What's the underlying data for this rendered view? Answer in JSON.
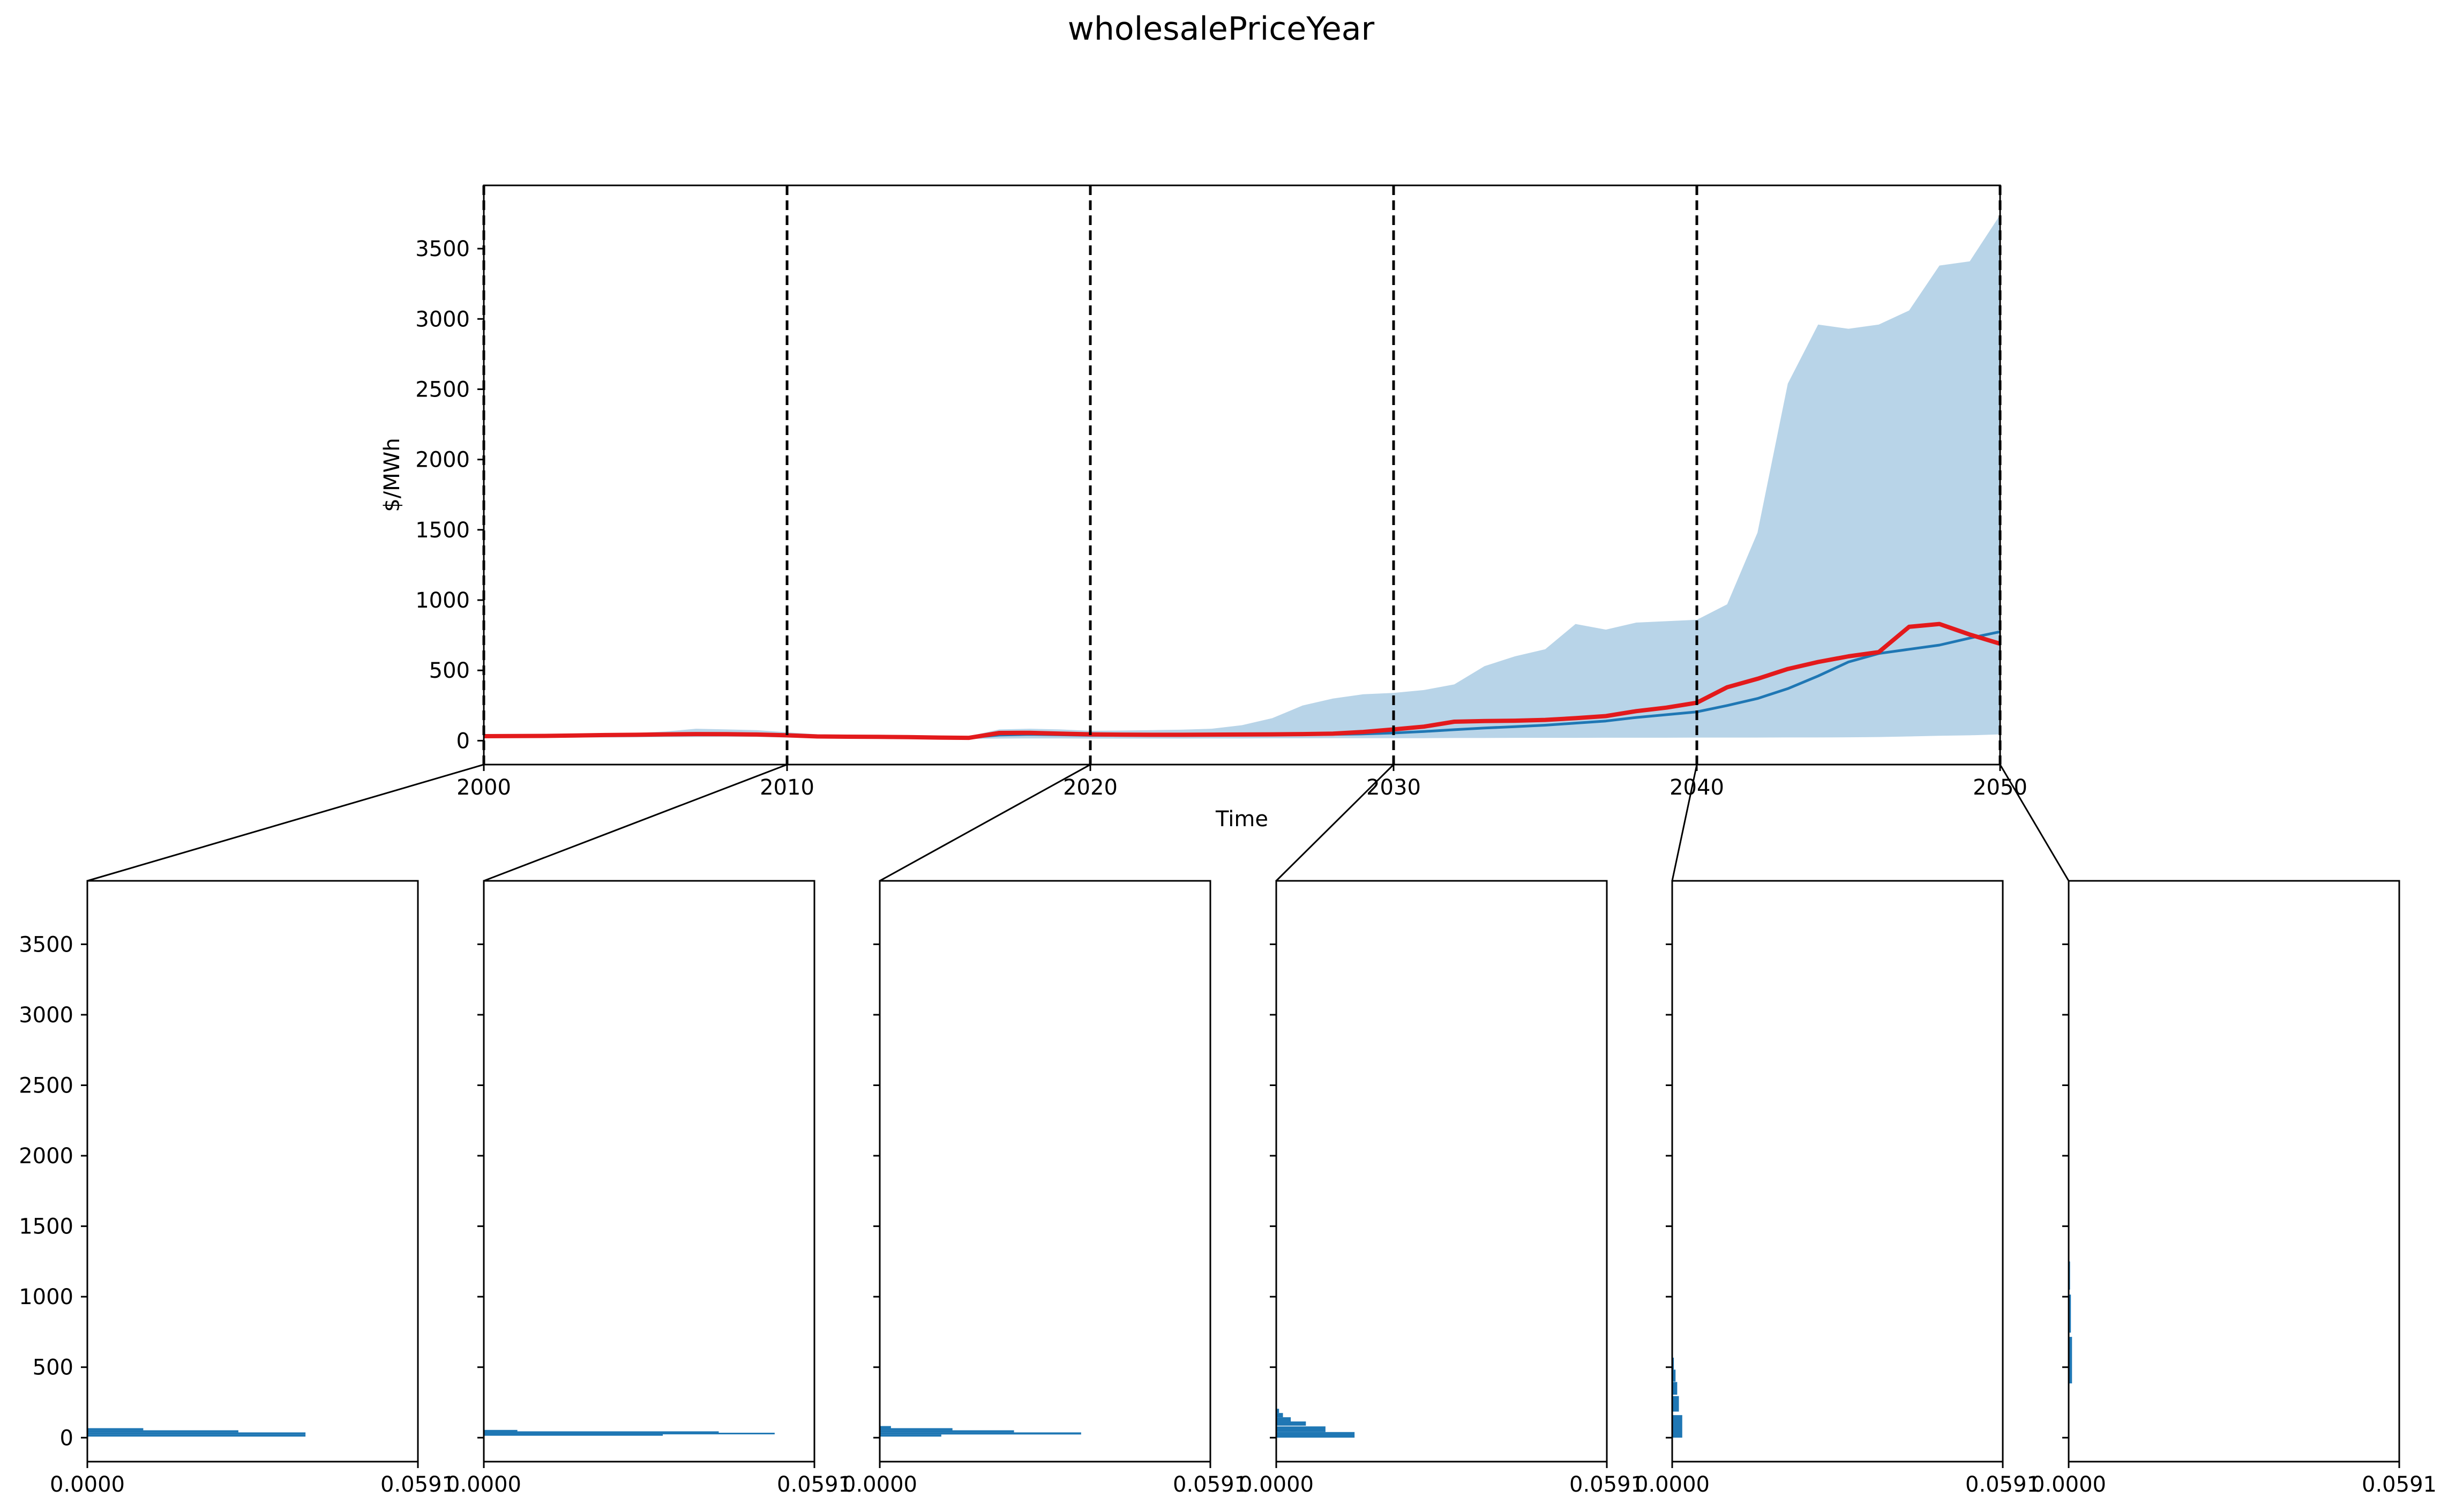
{
  "chart_data": [
    {
      "type": "line",
      "title": "wholesalePriceYear",
      "xlabel": "Time",
      "ylabel": "$/MWh",
      "xlim": [
        2000,
        2050
      ],
      "ylim": [
        -170,
        3950
      ],
      "xticks": [
        2000,
        2010,
        2020,
        2030,
        2040,
        2050
      ],
      "yticks": [
        0,
        500,
        1000,
        1500,
        2000,
        2500,
        3000,
        3500
      ],
      "grid": false,
      "vertical_markers": [
        2000,
        2010,
        2020,
        2030,
        2040,
        2050
      ],
      "x": [
        2000,
        2001,
        2002,
        2003,
        2004,
        2005,
        2006,
        2007,
        2008,
        2009,
        2010,
        2011,
        2012,
        2013,
        2014,
        2015,
        2016,
        2017,
        2018,
        2019,
        2020,
        2021,
        2022,
        2023,
        2024,
        2025,
        2026,
        2027,
        2028,
        2029,
        2030,
        2031,
        2032,
        2033,
        2034,
        2035,
        2036,
        2037,
        2038,
        2039,
        2040,
        2041,
        2042,
        2043,
        2044,
        2045,
        2046,
        2047,
        2048,
        2049,
        2050
      ],
      "band": {
        "color": "#b8d4e8",
        "upper": [
          45,
          45,
          48,
          50,
          52,
          55,
          65,
          85,
          80,
          75,
          60,
          45,
          42,
          40,
          38,
          35,
          32,
          80,
          85,
          80,
          70,
          72,
          75,
          78,
          85,
          110,
          160,
          250,
          300,
          330,
          340,
          360,
          400,
          530,
          600,
          650,
          830,
          790,
          840,
          850,
          860,
          970,
          1480,
          2540,
          2960,
          2930,
          2960,
          3060,
          3380,
          3410,
          3740
        ],
        "lower": [
          20,
          20,
          22,
          22,
          23,
          24,
          25,
          26,
          27,
          27,
          22,
          18,
          17,
          16,
          15,
          14,
          12,
          15,
          16,
          16,
          15,
          15,
          15,
          15,
          16,
          16,
          17,
          17,
          18,
          18,
          18,
          18,
          19,
          19,
          20,
          20,
          20,
          21,
          21,
          21,
          22,
          22,
          22,
          23,
          23,
          24,
          26,
          30,
          35,
          38,
          45
        ]
      },
      "series": [
        {
          "color": "#1f77b4",
          "values": [
            35,
            35,
            36,
            37,
            38,
            40,
            42,
            44,
            43,
            42,
            38,
            33,
            30,
            28,
            26,
            24,
            22,
            40,
            45,
            42,
            38,
            38,
            38,
            39,
            40,
            41,
            42,
            43,
            45,
            48,
            55,
            65,
            78,
            90,
            100,
            110,
            125,
            140,
            165,
            185,
            205,
            250,
            300,
            370,
            460,
            560,
            620,
            650,
            680,
            730,
            775
          ]
        },
        {
          "color": "#e31a1c",
          "values": [
            32,
            33,
            34,
            37,
            40,
            42,
            45,
            47,
            46,
            44,
            38,
            30,
            28,
            27,
            25,
            22,
            20,
            55,
            56,
            50,
            45,
            43,
            42,
            42,
            43,
            44,
            45,
            47,
            50,
            62,
            80,
            100,
            135,
            140,
            142,
            148,
            160,
            175,
            210,
            235,
            270,
            380,
            440,
            510,
            560,
            600,
            630,
            810,
            830,
            755,
            690
          ]
        }
      ]
    },
    {
      "type": "bar",
      "orientation": "horizontal",
      "title": "",
      "xlabel": "",
      "ylabel": "",
      "xlim": [
        0,
        0.0591
      ],
      "ylim": [
        -170,
        3950
      ],
      "xticks": [
        "0.0000",
        "0.0591"
      ],
      "yticks": [
        0,
        500,
        1000,
        1500,
        2000,
        2500,
        3000,
        3500
      ],
      "y": [
        15,
        30,
        45,
        60
      ],
      "values": [
        0.039,
        0.039,
        0.027,
        0.01
      ]
    },
    {
      "type": "bar",
      "orientation": "horizontal",
      "title": "",
      "xlabel": "",
      "ylabel": "",
      "xlim": [
        0,
        0.0591
      ],
      "ylim": [
        -170,
        3950
      ],
      "xticks": [
        "0.0000",
        "0.0591"
      ],
      "yticks": [
        0,
        500,
        1000,
        1500,
        2000,
        2500,
        3000,
        3500
      ],
      "y": [
        20,
        30,
        40,
        50
      ],
      "values": [
        0.032,
        0.052,
        0.042,
        0.006
      ]
    },
    {
      "type": "bar",
      "orientation": "horizontal",
      "title": "",
      "xlabel": "",
      "ylabel": "",
      "xlim": [
        0,
        0.0591
      ],
      "ylim": [
        -170,
        3950
      ],
      "xticks": [
        "0.0000",
        "0.0591"
      ],
      "yticks": [
        0,
        500,
        1000,
        1500,
        2000,
        2500,
        3000,
        3500
      ],
      "y": [
        15,
        30,
        45,
        60,
        75
      ],
      "values": [
        0.011,
        0.036,
        0.024,
        0.013,
        0.002
      ]
    },
    {
      "type": "bar",
      "orientation": "horizontal",
      "title": "",
      "xlabel": "",
      "ylabel": "",
      "xlim": [
        0,
        0.0591
      ],
      "ylim": [
        -170,
        3950
      ],
      "xticks": [
        "0.0000",
        "0.0591"
      ],
      "yticks": [
        0,
        500,
        1000,
        1500,
        2000,
        2500,
        3000,
        3500
      ],
      "y": [
        20,
        60,
        100,
        130,
        160,
        190
      ],
      "values": [
        0.014,
        0.0088,
        0.0053,
        0.0026,
        0.0012,
        0.0005
      ]
    },
    {
      "type": "bar",
      "orientation": "horizontal",
      "title": "",
      "xlabel": "",
      "ylabel": "",
      "xlim": [
        0,
        0.0591
      ],
      "ylim": [
        -170,
        3950
      ],
      "xticks": [
        "0.0000",
        "0.0591"
      ],
      "yticks": [
        0,
        500,
        1000,
        1500,
        2000,
        2500,
        3000,
        3500
      ],
      "y": [
        80,
        240,
        350,
        440,
        525
      ],
      "values": [
        0.0018,
        0.0012,
        0.0009,
        0.0006,
        0.0003
      ]
    },
    {
      "type": "bar",
      "orientation": "horizontal",
      "title": "",
      "xlabel": "",
      "ylabel": "",
      "xlim": [
        0,
        0.0591
      ],
      "ylim": [
        -170,
        3950
      ],
      "xticks": [
        "0.0000",
        "0.0591"
      ],
      "yticks": [
        0,
        500,
        1000,
        1500,
        2000,
        2500,
        3000,
        3500
      ],
      "y": [
        550,
        880,
        1150,
        1350
      ],
      "values": [
        0.0006,
        0.0004,
        0.00025,
        0.0001
      ]
    }
  ]
}
